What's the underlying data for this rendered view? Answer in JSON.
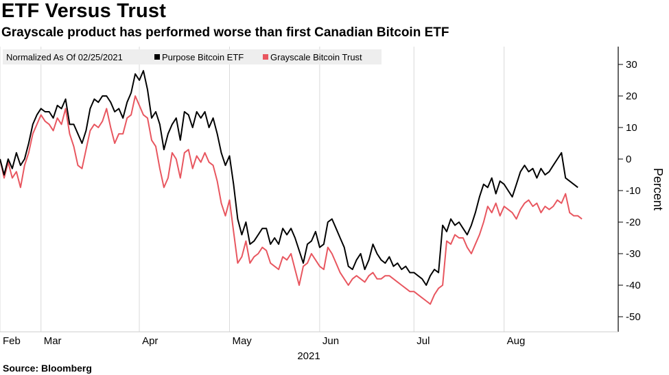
{
  "title": "ETF Versus Trust",
  "subtitle": "Grayscale product has performed worse than first Canadian Bitcoin ETF",
  "source": "Source: Bloomberg",
  "colors": {
    "etf": "#000000",
    "trust": "#e8565f",
    "grid": "#d9d9d9",
    "legend_bg": "#eeeeee"
  },
  "chart_data": {
    "type": "line",
    "legend_title": "Normalized As Of 02/25/2021",
    "legend_placement": "top-left",
    "ylabel": "Percent",
    "xlabel": "2021",
    "ylim": [
      -52,
      36
    ],
    "y_ticks": [
      30,
      20,
      10,
      0,
      -10,
      -20,
      -30,
      -40,
      -50
    ],
    "y_axis_side": "right",
    "grid": "vertical",
    "x_ticks": [
      {
        "label": "Feb",
        "t": 0
      },
      {
        "label": "Mar",
        "t": 10
      },
      {
        "label": "Apr",
        "t": 34
      },
      {
        "label": "May",
        "t": 56
      },
      {
        "label": "Jun",
        "t": 78
      },
      {
        "label": "Jul",
        "t": 101
      },
      {
        "label": "Aug",
        "t": 123
      }
    ],
    "x_range": [
      0,
      147
    ],
    "x_unit": "trading day index (0 = 02/25/2021)",
    "series": [
      {
        "name": "Purpose Bitcoin ETF",
        "key": "etf",
        "values": [
          0,
          -5,
          0,
          -3,
          2,
          -2,
          0,
          5,
          11,
          14,
          16,
          15,
          15,
          13,
          17,
          16,
          19,
          11,
          11,
          8,
          5,
          9,
          16,
          19,
          18,
          20,
          20,
          18,
          15,
          16,
          13,
          18,
          21,
          27,
          25,
          28,
          22,
          13,
          15,
          11,
          3,
          8,
          11,
          13,
          6,
          15,
          14,
          10,
          15,
          13,
          15,
          10,
          13,
          8,
          2,
          -2,
          1,
          -8,
          -19,
          -24,
          -20,
          -27,
          -26,
          -24,
          -22,
          -22,
          -27,
          -25,
          -27,
          -22,
          -24,
          -22,
          -25,
          -29,
          -33,
          -27,
          -26,
          -23,
          -28,
          -27,
          -20,
          -19,
          -22,
          -25,
          -28,
          -34,
          -35,
          -32,
          -30,
          -35,
          -32,
          -27,
          -30,
          -32,
          -33,
          -31,
          -34,
          -33,
          -35,
          -34,
          -36,
          -36,
          -37,
          -38,
          -40,
          -37,
          -35,
          -36,
          -21,
          -23,
          -19,
          -21,
          -20,
          -22,
          -24,
          -21,
          -17,
          -12,
          -8,
          -9,
          -6,
          -11,
          -7,
          -8,
          -10,
          -12,
          -8,
          -4,
          -2,
          -4,
          -3,
          -6,
          -3,
          -5,
          -4,
          -2,
          0,
          2,
          -6,
          -7,
          -8,
          -9
        ],
        "note": "approximate, read from chart"
      },
      {
        "name": "Grayscale Bitcoin Trust",
        "key": "trust",
        "values": [
          0,
          -6,
          -1,
          -6,
          -4,
          -9,
          -2,
          2,
          8,
          11,
          14,
          12,
          11,
          9,
          13,
          11,
          16,
          8,
          4,
          -2,
          -3,
          3,
          9,
          11,
          10,
          12,
          16,
          10,
          5,
          8,
          8,
          13,
          14,
          20,
          17,
          14,
          13,
          6,
          4,
          -3,
          -9,
          -6,
          2,
          0,
          -6,
          2,
          3,
          -3,
          1,
          -1,
          2,
          -1,
          -2,
          -7,
          -14,
          -18,
          -13,
          -23,
          -33,
          -31,
          -26,
          -33,
          -31,
          -30,
          -28,
          -29,
          -33,
          -34,
          -35,
          -31,
          -32,
          -30,
          -35,
          -40,
          -34,
          -33,
          -30,
          -32,
          -34,
          -35,
          -28,
          -30,
          -33,
          -36,
          -38,
          -40,
          -38,
          -37,
          -38,
          -39,
          -37,
          -36,
          -38,
          -38,
          -37,
          -37,
          -38,
          -39,
          -40,
          -41,
          -42,
          -42,
          -43,
          -44,
          -45,
          -46,
          -43,
          -41,
          -40,
          -26,
          -27,
          -24,
          -25,
          -25,
          -28,
          -30,
          -27,
          -24,
          -20,
          -15,
          -17,
          -14,
          -18,
          -15,
          -16,
          -17,
          -19,
          -16,
          -14,
          -13,
          -15,
          -14,
          -17,
          -15,
          -16,
          -15,
          -13,
          -14,
          -11,
          -17,
          -18,
          -18,
          -19
        ]
      }
    ]
  }
}
